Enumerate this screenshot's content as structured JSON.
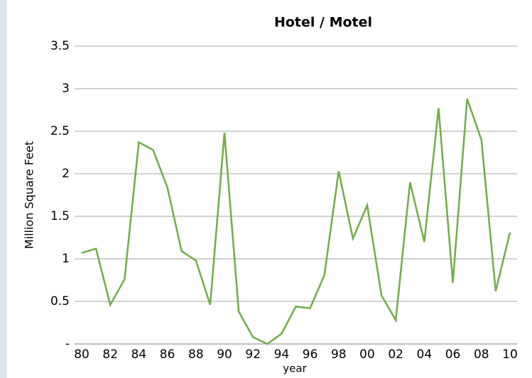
{
  "chart_data": {
    "type": "line",
    "title": "Hotel / Motel",
    "x_label": "year",
    "y_label": "Million Square Feet",
    "categories": [
      "80",
      null,
      "82",
      null,
      "84",
      null,
      "86",
      null,
      "88",
      null,
      "90",
      null,
      "92",
      null,
      "94",
      null,
      "96",
      null,
      "98",
      null,
      "00",
      null,
      "02",
      null,
      "04",
      null,
      "06",
      null,
      "08",
      null,
      "10"
    ],
    "series": [
      {
        "name": "Hotel / Motel",
        "color": "#70ad47",
        "values": [
          1.07,
          1.12,
          0.46,
          0.76,
          2.37,
          2.28,
          1.84,
          1.09,
          0.98,
          0.46,
          2.48,
          0.38,
          0.08,
          0.0,
          0.12,
          0.44,
          0.42,
          0.81,
          2.03,
          1.24,
          1.63,
          0.57,
          0.28,
          1.9,
          1.2,
          2.77,
          0.72,
          2.88,
          2.4,
          0.62,
          1.31
        ]
      }
    ],
    "ylim": [
      0,
      3.5
    ],
    "yticks": [
      {
        "value": 0,
        "label": "-"
      },
      0.5,
      1,
      1.5,
      2,
      2.5,
      3,
      3.5
    ],
    "grid": true
  }
}
